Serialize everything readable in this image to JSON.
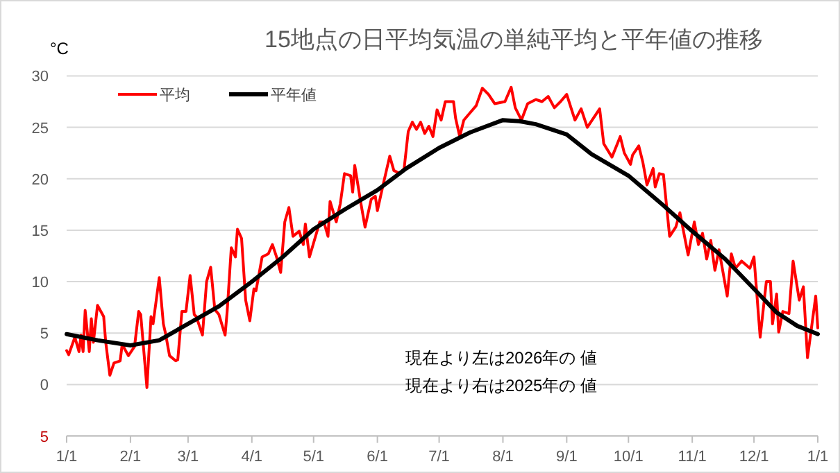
{
  "chart_data": {
    "type": "line",
    "title": "15地点の日平均気温の単純平均と平年値の推移",
    "ylabel": "°C",
    "annotations": [
      "現在より左は2026年の 値",
      "現在より右は2025年の 値"
    ],
    "xlim": [
      "2025-01-01",
      "2026-01-01"
    ],
    "xticks": [
      {
        "value": "2025-01-01",
        "label": "1/1"
      },
      {
        "value": "2025-02-01",
        "label": "2/1"
      },
      {
        "value": "2025-03-01",
        "label": "3/1"
      },
      {
        "value": "2025-04-01",
        "label": "4/1"
      },
      {
        "value": "2025-05-01",
        "label": "5/1"
      },
      {
        "value": "2025-06-01",
        "label": "6/1"
      },
      {
        "value": "2025-07-01",
        "label": "7/1"
      },
      {
        "value": "2025-08-01",
        "label": "8/1"
      },
      {
        "value": "2025-09-01",
        "label": "9/1"
      },
      {
        "value": "2025-10-01",
        "label": "10/1"
      },
      {
        "value": "2025-11-01",
        "label": "11/1"
      },
      {
        "value": "2025-12-01",
        "label": "12/1"
      },
      {
        "value": "2026-01-01",
        "label": "1/1"
      }
    ],
    "ylim": [
      -5,
      30
    ],
    "yticks": [
      {
        "value": -5,
        "label": "5"
      },
      0,
      5,
      10,
      15,
      20,
      25,
      30
    ],
    "grid": "y",
    "legend": "top left",
    "marker": "none",
    "line_style": "solid",
    "series": [
      {
        "name": "平均",
        "color": "#ff0000",
        "x": [
          "2025-01-01",
          "2025-01-02",
          "2025-01-05",
          "2025-01-07",
          "2025-01-08",
          "2025-01-09",
          "2025-01-10",
          "2025-01-12",
          "2025-01-13",
          "2025-01-14",
          "2025-01-16",
          "2025-01-19",
          "2025-01-20",
          "2025-01-22",
          "2025-01-24",
          "2025-01-27",
          "2025-01-28",
          "2025-01-31",
          "2025-02-03",
          "2025-02-05",
          "2025-02-06",
          "2025-02-09",
          "2025-02-11",
          "2025-02-12",
          "2025-02-15",
          "2025-02-17",
          "2025-02-18",
          "2025-02-20",
          "2025-02-23",
          "2025-02-24",
          "2025-02-26",
          "2025-02-28",
          "2025-03-02",
          "2025-03-04",
          "2025-03-05",
          "2025-03-08",
          "2025-03-10",
          "2025-03-12",
          "2025-03-14",
          "2025-03-16",
          "2025-03-19",
          "2025-03-20",
          "2025-03-22",
          "2025-03-24",
          "2025-03-25",
          "2025-03-27",
          "2025-03-29",
          "2025-03-31",
          "2025-04-02",
          "2025-04-03",
          "2025-04-06",
          "2025-04-09",
          "2025-04-11",
          "2025-04-13",
          "2025-04-15",
          "2025-04-17",
          "2025-04-19",
          "2025-04-21",
          "2025-04-24",
          "2025-04-26",
          "2025-04-27",
          "2025-04-29",
          "2025-05-04",
          "2025-05-06",
          "2025-05-08",
          "2025-05-09",
          "2025-05-12",
          "2025-05-14",
          "2025-05-16",
          "2025-05-19",
          "2025-05-20",
          "2025-05-21",
          "2025-05-24",
          "2025-05-26",
          "2025-05-29",
          "2025-05-31",
          "2025-06-01",
          "2025-06-04",
          "2025-06-07",
          "2025-06-09",
          "2025-06-12",
          "2025-06-14",
          "2025-06-16",
          "2025-06-18",
          "2025-06-20",
          "2025-06-22",
          "2025-06-24",
          "2025-06-26",
          "2025-06-28",
          "2025-06-30",
          "2025-07-02",
          "2025-07-04",
          "2025-07-08",
          "2025-07-09",
          "2025-07-11",
          "2025-07-13",
          "2025-07-16",
          "2025-07-19",
          "2025-07-22",
          "2025-07-25",
          "2025-07-28",
          "2025-08-02",
          "2025-08-05",
          "2025-08-07",
          "2025-08-10",
          "2025-08-13",
          "2025-08-17",
          "2025-08-20",
          "2025-08-23",
          "2025-08-26",
          "2025-08-29",
          "2025-09-01",
          "2025-09-05",
          "2025-09-08",
          "2025-09-11",
          "2025-09-17",
          "2025-09-19",
          "2025-09-23",
          "2025-09-27",
          "2025-09-29",
          "2025-10-02",
          "2025-10-03",
          "2025-10-06",
          "2025-10-08",
          "2025-10-10",
          "2025-10-13",
          "2025-10-14",
          "2025-10-16",
          "2025-10-18",
          "2025-10-21",
          "2025-10-24",
          "2025-10-26",
          "2025-10-30",
          "2025-11-02",
          "2025-11-04",
          "2025-11-06",
          "2025-11-08",
          "2025-11-10",
          "2025-11-12",
          "2025-11-14",
          "2025-11-18",
          "2025-11-20",
          "2025-11-22",
          "2025-11-25",
          "2025-11-29",
          "2025-12-01",
          "2025-12-04",
          "2025-12-07",
          "2025-12-09",
          "2025-12-10",
          "2025-12-12",
          "2025-12-13",
          "2025-12-15",
          "2025-12-18",
          "2025-12-20",
          "2025-12-23",
          "2025-12-25",
          "2025-12-27",
          "2025-12-31",
          "2026-01-01"
        ],
        "values": [
          3.3,
          2.9,
          4.6,
          3.2,
          4.8,
          3.2,
          7.2,
          3.2,
          6.4,
          4.1,
          7.7,
          6.6,
          4.1,
          0.9,
          2.1,
          2.3,
          3.9,
          2.8,
          3.7,
          7.1,
          6.8,
          -0.3,
          6.6,
          5.9,
          10.4,
          5.9,
          5.0,
          2.8,
          2.3,
          2.4,
          7.1,
          7.1,
          10.6,
          6.8,
          6.6,
          4.8,
          10.0,
          11.4,
          7.3,
          6.8,
          4.8,
          7.1,
          13.3,
          12.4,
          15.1,
          14.2,
          8.2,
          6.2,
          9.3,
          9.1,
          12.4,
          12.7,
          13.6,
          12.4,
          10.9,
          15.8,
          17.2,
          14.4,
          14.9,
          13.6,
          15.6,
          12.4,
          15.8,
          15.8,
          14.4,
          17.8,
          15.8,
          17.6,
          20.5,
          20.3,
          18.7,
          21.3,
          17.6,
          15.3,
          18.0,
          18.3,
          16.9,
          19.6,
          22.2,
          20.8,
          20.5,
          21.0,
          24.6,
          25.5,
          24.8,
          25.5,
          24.4,
          25.1,
          24.1,
          26.7,
          25.7,
          27.5,
          27.5,
          25.9,
          24.1,
          25.7,
          26.4,
          27.1,
          28.8,
          28.2,
          27.3,
          27.5,
          28.9,
          26.9,
          25.7,
          27.3,
          27.7,
          27.5,
          28.0,
          26.9,
          27.5,
          28.2,
          25.7,
          26.8,
          25.0,
          26.8,
          23.4,
          22.1,
          24.1,
          22.5,
          21.4,
          22.3,
          23.2,
          21.6,
          19.4,
          21.0,
          19.2,
          20.5,
          20.4,
          14.4,
          15.3,
          16.7,
          12.6,
          15.8,
          13.6,
          14.7,
          12.2,
          14.0,
          11.1,
          13.1,
          8.6,
          12.7,
          11.3,
          12.0,
          11.3,
          12.4,
          4.6,
          10.0,
          10.0,
          5.9,
          8.8,
          5.1,
          7.1,
          6.9,
          12.0,
          8.2,
          9.5,
          2.6,
          8.6,
          5.5
        ]
      },
      {
        "name": "平年値",
        "color": "#000000",
        "x": [
          "2025-01-01",
          "2025-01-16",
          "2025-02-01",
          "2025-02-15",
          "2025-03-01",
          "2025-03-16",
          "2025-04-01",
          "2025-04-16",
          "2025-05-01",
          "2025-05-16",
          "2025-06-01",
          "2025-06-15",
          "2025-07-01",
          "2025-07-16",
          "2025-08-01",
          "2025-08-09",
          "2025-08-17",
          "2025-09-01",
          "2025-09-13",
          "2025-10-01",
          "2025-10-18",
          "2025-11-01",
          "2025-11-17",
          "2025-12-01",
          "2025-12-12",
          "2025-12-22",
          "2026-01-01"
        ],
        "values": [
          4.9,
          4.3,
          3.8,
          4.3,
          5.9,
          7.6,
          10.0,
          12.4,
          15.1,
          17.0,
          18.9,
          21.0,
          23.0,
          24.5,
          25.7,
          25.6,
          25.3,
          24.3,
          22.4,
          20.3,
          17.4,
          14.9,
          12.2,
          9.3,
          7.0,
          5.7,
          4.9
        ]
      }
    ]
  }
}
